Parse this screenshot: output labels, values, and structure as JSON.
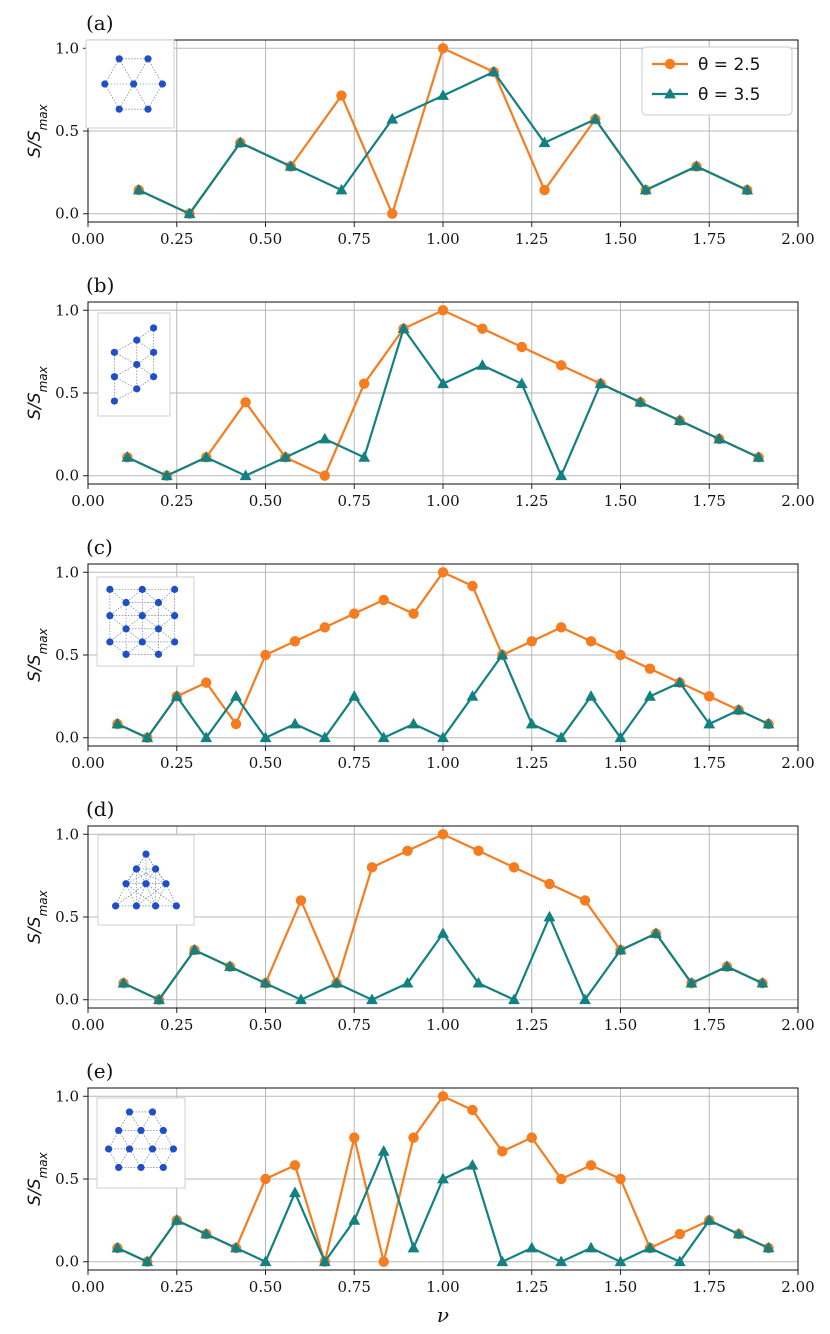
{
  "colors": {
    "orange": "#f57c1f",
    "teal": "#138181",
    "grid": "#b8b8b8",
    "node": "#1f4fc8",
    "bond": "#5a6b8a"
  },
  "legend": {
    "location": "top-right",
    "entries": [
      "θ = 2.5",
      "θ = 3.5"
    ]
  },
  "chart_data": [
    {
      "type": "line",
      "panel": "(a)",
      "ylabel": "S/S_max",
      "xlabel": "",
      "xlim": [
        0,
        2
      ],
      "ylim": [
        -0.05,
        1.05
      ],
      "xticks": [
        "0.00",
        "0.25",
        "0.50",
        "0.75",
        "1.00",
        "1.25",
        "1.50",
        "1.75",
        "2.00"
      ],
      "yticks": [
        "0.0",
        "0.5",
        "1.0"
      ],
      "x": [
        0.143,
        0.286,
        0.429,
        0.571,
        0.714,
        0.857,
        1.0,
        1.143,
        1.286,
        1.429,
        1.571,
        1.714,
        1.857
      ],
      "series": [
        {
          "name": "θ = 2.5",
          "marker": "circle",
          "values": [
            0.143,
            0.0,
            0.429,
            0.286,
            0.714,
            0.0,
            1.0,
            0.857,
            0.143,
            0.571,
            0.143,
            0.286,
            0.143
          ]
        },
        {
          "name": "θ = 3.5",
          "marker": "triangle",
          "values": [
            0.143,
            0.0,
            0.429,
            0.286,
            0.143,
            0.571,
            0.714,
            0.857,
            0.429,
            0.571,
            0.143,
            0.286,
            0.143
          ]
        }
      ],
      "lattice": "hexagon-7"
    },
    {
      "type": "line",
      "panel": "(b)",
      "ylabel": "S/S_max",
      "xlabel": "",
      "xlim": [
        0,
        2
      ],
      "ylim": [
        -0.05,
        1.05
      ],
      "xticks": [
        "0.00",
        "0.25",
        "0.50",
        "0.75",
        "1.00",
        "1.25",
        "1.50",
        "1.75",
        "2.00"
      ],
      "yticks": [
        "0.0",
        "0.5",
        "1.0"
      ],
      "x": [
        0.111,
        0.222,
        0.333,
        0.444,
        0.556,
        0.667,
        0.778,
        0.889,
        1.0,
        1.111,
        1.222,
        1.333,
        1.444,
        1.556,
        1.667,
        1.778,
        1.889
      ],
      "series": [
        {
          "name": "θ = 2.5",
          "marker": "circle",
          "values": [
            0.111,
            0.0,
            0.111,
            0.444,
            0.111,
            0.0,
            0.556,
            0.889,
            1.0,
            0.889,
            0.778,
            0.667,
            0.556,
            0.444,
            0.333,
            0.222,
            0.111
          ]
        },
        {
          "name": "θ = 3.5",
          "marker": "triangle",
          "values": [
            0.111,
            0.0,
            0.111,
            0.0,
            0.111,
            0.222,
            0.111,
            0.889,
            0.556,
            0.667,
            0.556,
            0.0,
            0.556,
            0.444,
            0.333,
            0.222,
            0.111
          ]
        }
      ],
      "lattice": "strip-9"
    },
    {
      "type": "line",
      "panel": "(c)",
      "ylabel": "S/S_max",
      "xlabel": "",
      "xlim": [
        0,
        2
      ],
      "ylim": [
        -0.05,
        1.05
      ],
      "xticks": [
        "0.00",
        "0.25",
        "0.50",
        "0.75",
        "1.00",
        "1.25",
        "1.50",
        "1.75",
        "2.00"
      ],
      "yticks": [
        "0.0",
        "0.5",
        "1.0"
      ],
      "x": [
        0.083,
        0.167,
        0.25,
        0.333,
        0.417,
        0.5,
        0.583,
        0.667,
        0.75,
        0.833,
        0.917,
        1.0,
        1.083,
        1.167,
        1.25,
        1.333,
        1.417,
        1.5,
        1.583,
        1.667,
        1.75,
        1.833,
        1.917
      ],
      "series": [
        {
          "name": "θ = 2.5",
          "marker": "circle",
          "values": [
            0.083,
            0.0,
            0.25,
            0.333,
            0.083,
            0.5,
            0.583,
            0.667,
            0.75,
            0.833,
            0.75,
            1.0,
            0.917,
            0.5,
            0.583,
            0.667,
            0.583,
            0.5,
            0.417,
            0.333,
            0.25,
            0.167,
            0.083
          ]
        },
        {
          "name": "θ = 3.5",
          "marker": "triangle",
          "values": [
            0.083,
            0.0,
            0.25,
            0.0,
            0.25,
            0.0,
            0.083,
            0.0,
            0.25,
            0.0,
            0.083,
            0.0,
            0.25,
            0.5,
            0.083,
            0.0,
            0.25,
            0.0,
            0.25,
            0.333,
            0.083,
            0.167,
            0.083
          ]
        }
      ],
      "lattice": "rect-12"
    },
    {
      "type": "line",
      "panel": "(d)",
      "ylabel": "S/S_max",
      "xlabel": "",
      "xlim": [
        0,
        2
      ],
      "ylim": [
        -0.05,
        1.05
      ],
      "xticks": [
        "0.00",
        "0.25",
        "0.50",
        "0.75",
        "1.00",
        "1.25",
        "1.50",
        "1.75",
        "2.00"
      ],
      "yticks": [
        "0.0",
        "0.5",
        "1.0"
      ],
      "x": [
        0.1,
        0.2,
        0.3,
        0.4,
        0.5,
        0.6,
        0.7,
        0.8,
        0.9,
        1.0,
        1.1,
        1.2,
        1.3,
        1.4,
        1.5,
        1.6,
        1.7,
        1.8,
        1.9
      ],
      "series": [
        {
          "name": "θ = 2.5",
          "marker": "circle",
          "values": [
            0.1,
            0.0,
            0.3,
            0.2,
            0.1,
            0.6,
            0.1,
            0.8,
            0.9,
            1.0,
            0.9,
            0.8,
            0.7,
            0.6,
            0.3,
            0.4,
            0.1,
            0.2,
            0.1
          ]
        },
        {
          "name": "θ = 3.5",
          "marker": "triangle",
          "values": [
            0.1,
            0.0,
            0.3,
            0.2,
            0.1,
            0.0,
            0.1,
            0.0,
            0.1,
            0.4,
            0.1,
            0.0,
            0.5,
            0.0,
            0.3,
            0.4,
            0.1,
            0.2,
            0.1
          ]
        }
      ],
      "lattice": "triangle-10"
    },
    {
      "type": "line",
      "panel": "(e)",
      "ylabel": "S/S_max",
      "xlabel": "ν",
      "xlim": [
        0,
        2
      ],
      "ylim": [
        -0.05,
        1.05
      ],
      "xticks": [
        "0.00",
        "0.25",
        "0.50",
        "0.75",
        "1.00",
        "1.25",
        "1.50",
        "1.75",
        "2.00"
      ],
      "yticks": [
        "0.0",
        "0.5",
        "1.0"
      ],
      "x": [
        0.083,
        0.167,
        0.25,
        0.333,
        0.417,
        0.5,
        0.583,
        0.667,
        0.75,
        0.833,
        0.917,
        1.0,
        1.083,
        1.167,
        1.25,
        1.333,
        1.417,
        1.5,
        1.583,
        1.667,
        1.75,
        1.833,
        1.917
      ],
      "series": [
        {
          "name": "θ = 2.5",
          "marker": "circle",
          "values": [
            0.083,
            0.0,
            0.25,
            0.167,
            0.083,
            0.5,
            0.583,
            0.0,
            0.75,
            0.0,
            0.75,
            1.0,
            0.917,
            0.667,
            0.75,
            0.5,
            0.583,
            0.5,
            0.083,
            0.167,
            0.25,
            0.167,
            0.083
          ]
        },
        {
          "name": "θ = 3.5",
          "marker": "triangle",
          "values": [
            0.083,
            0.0,
            0.25,
            0.167,
            0.083,
            0.0,
            0.417,
            0.0,
            0.25,
            0.667,
            0.083,
            0.5,
            0.583,
            0.0,
            0.083,
            0.0,
            0.083,
            0.0,
            0.083,
            0.0,
            0.25,
            0.167,
            0.083
          ]
        }
      ],
      "lattice": "hexagon-12"
    }
  ]
}
